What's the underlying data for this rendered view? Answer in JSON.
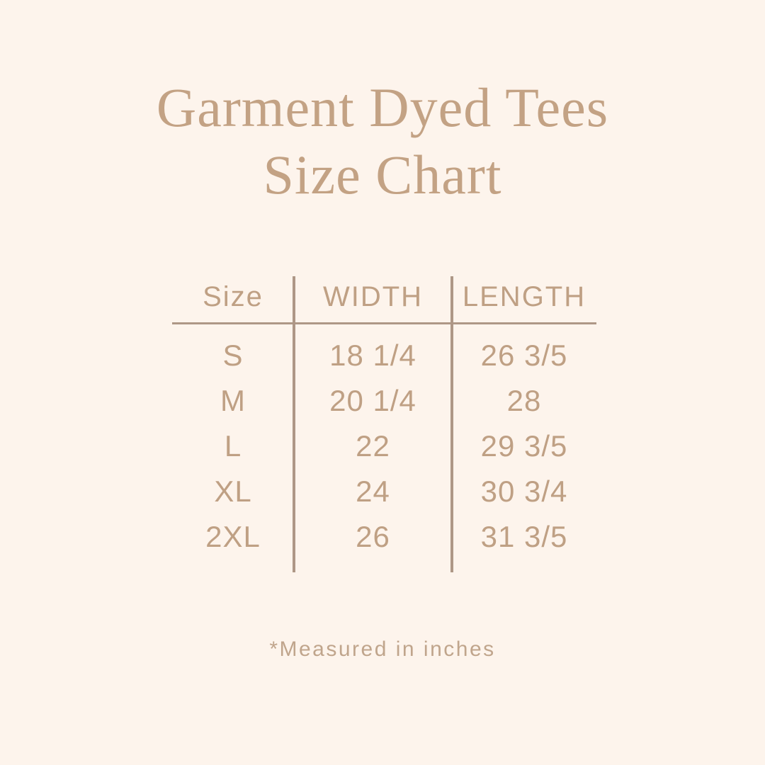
{
  "page": {
    "background": "#fdf4ec"
  },
  "title": {
    "line1": "Garment Dyed Tees",
    "line2": "Size Chart"
  },
  "footer": {
    "note": "*Measured in inches"
  },
  "colors": {
    "background": "#fdf4ec",
    "title_text": "#c3a284",
    "table_text": "#bfa084",
    "divider": "#ae9786"
  },
  "chart_data": {
    "type": "table",
    "title": "Garment Dyed Tees Size Chart",
    "columns": [
      "Size",
      "WIDTH",
      "LENGTH"
    ],
    "rows": [
      [
        "S",
        "18 1/4",
        "26 3/5"
      ],
      [
        "M",
        "20 1/4",
        "28"
      ],
      [
        "L",
        "22",
        "29 3/5"
      ],
      [
        "XL",
        "24",
        "30 3/4"
      ],
      [
        "2XL",
        "26",
        "31 3/5"
      ]
    ],
    "note": "*Measured in inches"
  }
}
